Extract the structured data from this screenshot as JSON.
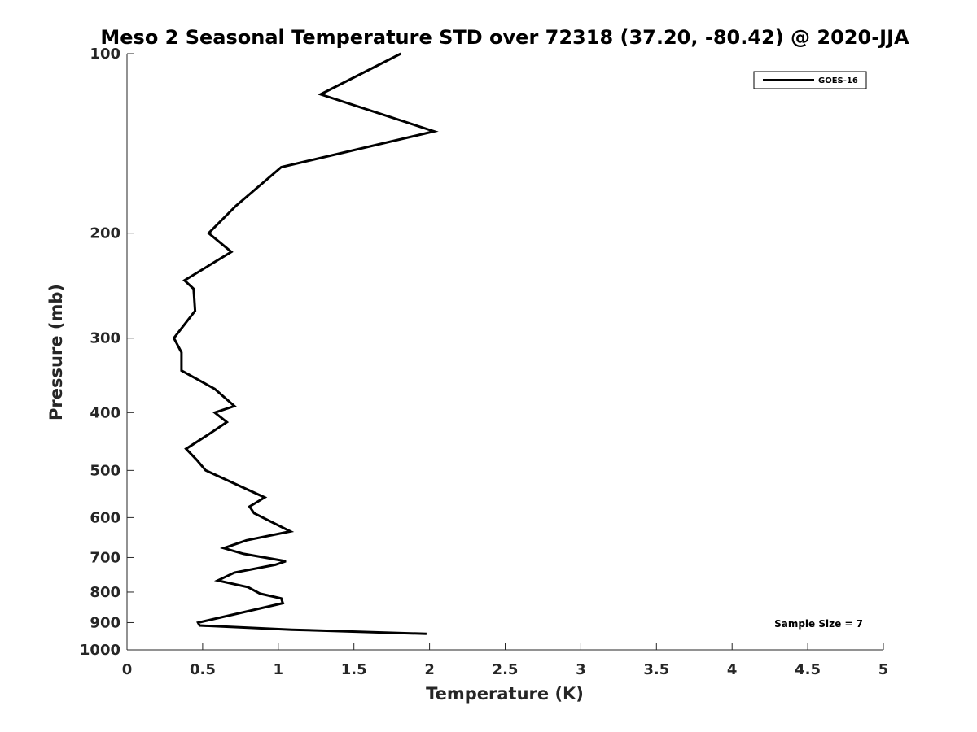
{
  "chart_data": {
    "type": "line",
    "title": "Meso 2 Seasonal Temperature STD over 72318 (37.20, -80.42) @ 2020-JJA",
    "xlabel": "Temperature (K)",
    "ylabel": "Pressure (mb)",
    "xlim": [
      0,
      5
    ],
    "ylim": [
      100,
      1000
    ],
    "yscale": "log",
    "yreversed": true,
    "xticks": [
      0,
      0.5,
      1,
      1.5,
      2,
      2.5,
      3,
      3.5,
      4,
      4.5,
      5
    ],
    "xtick_labels": [
      "0",
      "0.5",
      "1",
      "1.5",
      "2",
      "2.5",
      "3",
      "3.5",
      "4",
      "4.5",
      "5"
    ],
    "yticks": [
      100,
      200,
      300,
      400,
      500,
      600,
      700,
      800,
      900,
      1000
    ],
    "ytick_labels": [
      "100",
      "200",
      "300",
      "400",
      "500",
      "600",
      "700",
      "800",
      "900",
      "1000"
    ],
    "grid": false,
    "legend_position": "top-right",
    "annotation": "Sample Size = 7",
    "series": [
      {
        "name": "GOES-16",
        "color": "#000000",
        "points": [
          [
            1.81,
            100
          ],
          [
            1.28,
            117
          ],
          [
            2.03,
            135
          ],
          [
            1.02,
            155
          ],
          [
            0.72,
            180
          ],
          [
            0.54,
            200
          ],
          [
            0.69,
            215
          ],
          [
            0.38,
            240
          ],
          [
            0.44,
            248
          ],
          [
            0.45,
            270
          ],
          [
            0.31,
            300
          ],
          [
            0.36,
            317
          ],
          [
            0.36,
            340
          ],
          [
            0.58,
            365
          ],
          [
            0.71,
            390
          ],
          [
            0.58,
            400
          ],
          [
            0.66,
            415
          ],
          [
            0.54,
            435
          ],
          [
            0.39,
            460
          ],
          [
            0.46,
            480
          ],
          [
            0.52,
            500
          ],
          [
            0.91,
            555
          ],
          [
            0.81,
            575
          ],
          [
            0.84,
            590
          ],
          [
            1.08,
            633
          ],
          [
            0.79,
            655
          ],
          [
            0.64,
            675
          ],
          [
            0.77,
            690
          ],
          [
            1.05,
            710
          ],
          [
            0.98,
            720
          ],
          [
            0.71,
            742
          ],
          [
            0.6,
            765
          ],
          [
            0.8,
            785
          ],
          [
            0.88,
            805
          ],
          [
            1.02,
            820
          ],
          [
            1.03,
            835
          ],
          [
            0.47,
            900
          ],
          [
            0.48,
            910
          ],
          [
            1.09,
            925
          ],
          [
            1.98,
            940
          ]
        ]
      }
    ]
  }
}
